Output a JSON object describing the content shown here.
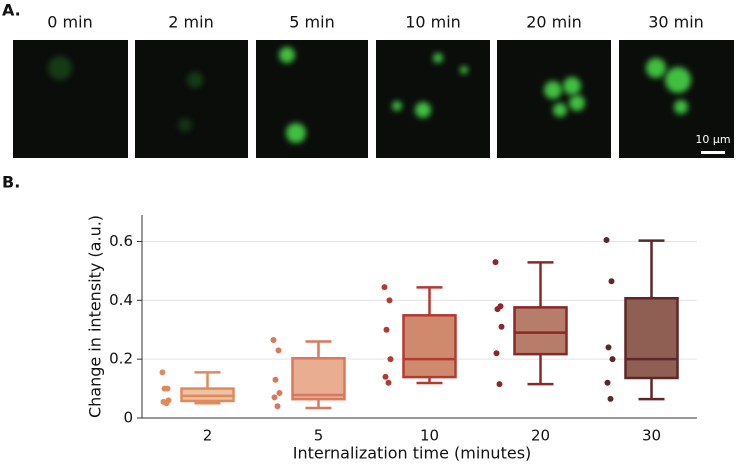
{
  "panel_a": {
    "label": "A.",
    "images": [
      "0 min",
      "2 min",
      "5 min",
      "10 min",
      "20 min",
      "30 min"
    ],
    "scale_bar": "10 µm"
  },
  "chart_data": {
    "type": "box",
    "label": "B.",
    "xlabel": "Internalization time (minutes)",
    "ylabel": "Change in intensity (a.u.)",
    "categories": [
      "2",
      "5",
      "10",
      "20",
      "30"
    ],
    "ylim": [
      0,
      0.69
    ],
    "yticks": [
      0,
      0.2,
      0.4,
      0.6
    ],
    "grid": true,
    "boxes": [
      {
        "color": "#e08a5c",
        "fill": "#f0c2a4",
        "min": 0.05,
        "q1": 0.058,
        "median": 0.075,
        "q3": 0.1,
        "max": 0.155,
        "points": [
          0.155,
          0.1,
          0.1,
          0.06,
          0.055,
          0.05
        ]
      },
      {
        "color": "#d9785a",
        "fill": "#e9ad92",
        "min": 0.034,
        "q1": 0.064,
        "median": 0.078,
        "q3": 0.203,
        "max": 0.26,
        "points": [
          0.265,
          0.23,
          0.13,
          0.085,
          0.07,
          0.04
        ]
      },
      {
        "color": "#b33a2f",
        "fill": "#cf8a6e",
        "min": 0.119,
        "q1": 0.139,
        "median": 0.2,
        "q3": 0.349,
        "max": 0.444,
        "points": [
          0.445,
          0.4,
          0.3,
          0.2,
          0.14,
          0.12
        ]
      },
      {
        "color": "#8c2727",
        "fill": "#b57d6a",
        "min": 0.115,
        "q1": 0.217,
        "median": 0.29,
        "q3": 0.376,
        "max": 0.529,
        "points": [
          0.53,
          0.38,
          0.37,
          0.31,
          0.22,
          0.115
        ]
      },
      {
        "color": "#5e2626",
        "fill": "#8e5f52",
        "min": 0.064,
        "q1": 0.136,
        "median": 0.2,
        "q3": 0.407,
        "max": 0.603,
        "points": [
          0.605,
          0.465,
          0.24,
          0.2,
          0.12,
          0.065
        ]
      }
    ]
  }
}
